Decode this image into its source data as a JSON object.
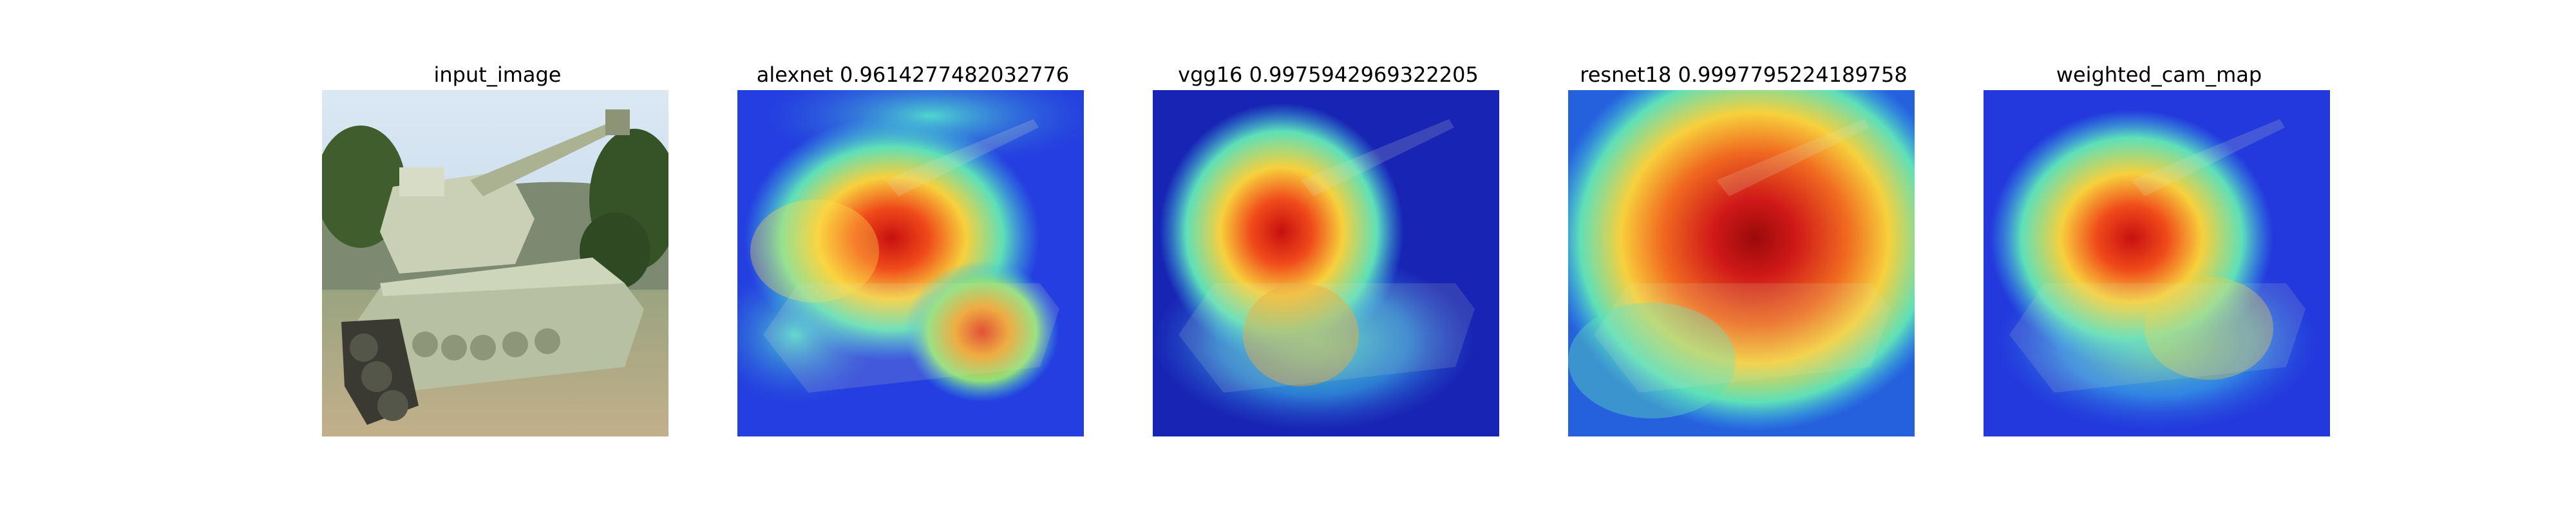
{
  "figure": {
    "panels": [
      {
        "title": "input_image",
        "kind": "photo"
      },
      {
        "title": "alexnet 0.9614277482032776",
        "kind": "cam"
      },
      {
        "title": "vgg16 0.9975942969322205",
        "kind": "cam"
      },
      {
        "title": "resnet18 0.9997795224189758",
        "kind": "cam"
      },
      {
        "title": "weighted_cam_map",
        "kind": "cam"
      }
    ],
    "colors": {
      "cam_background": "#1f2fd8",
      "cam_hot": "#d7191c",
      "cam_warm": "#f7d03c",
      "cam_mid": "#4ad7c2",
      "tank_body": "#c8cfb5",
      "sky": "#cfe2f3",
      "ground": "#b8a98a",
      "trees": "#3b5a2a"
    }
  }
}
